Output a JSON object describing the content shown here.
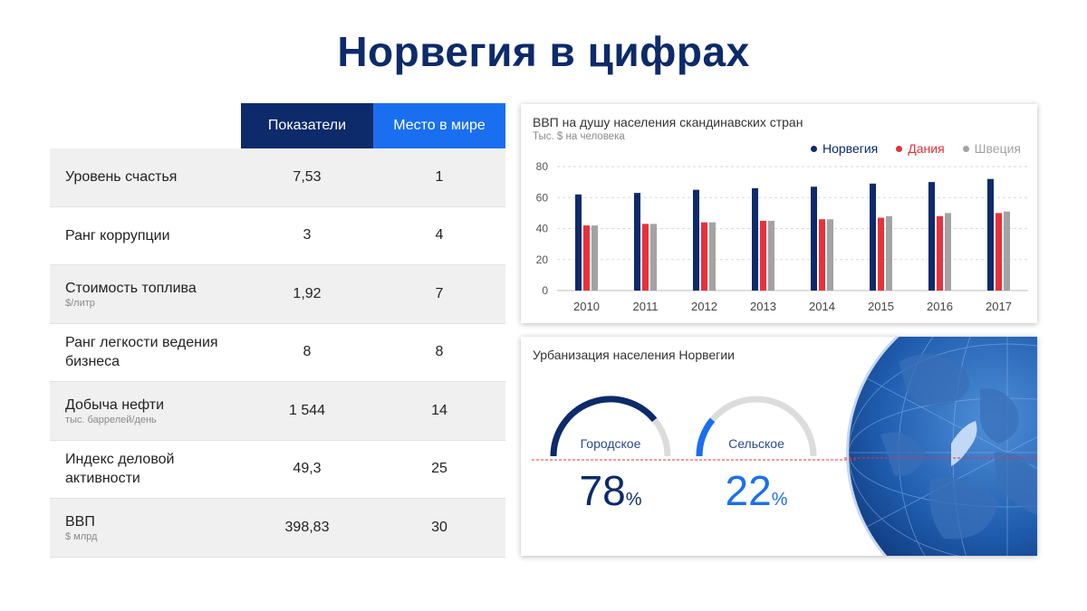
{
  "title": "Норвегия в цифрах",
  "table": {
    "col_headers": [
      "Показатели",
      "Место в мире"
    ],
    "rows": [
      {
        "name": "Уровень счастья",
        "unit": "",
        "value": "7,53",
        "rank": "1"
      },
      {
        "name": "Ранг коррупции",
        "unit": "",
        "value": "3",
        "rank": "4"
      },
      {
        "name": "Стоимость топлива",
        "unit": "$/литр",
        "value": "1,92",
        "rank": "7"
      },
      {
        "name": "Ранг легкости ведения бизнеса",
        "unit": "",
        "value": "8",
        "rank": "8"
      },
      {
        "name": "Добыча нефти",
        "unit": "тыс. баррелей/день",
        "value": "1 544",
        "rank": "14"
      },
      {
        "name": "Индекс деловой активности",
        "unit": "",
        "value": "49,3",
        "rank": "25"
      },
      {
        "name": "ВВП",
        "unit": "$ млрд",
        "value": "398,83",
        "rank": "30"
      }
    ]
  },
  "gdp_panel": {
    "title": "ВВП на душу населения скандинавских стран",
    "subtitle": "Тыс. $ на человека"
  },
  "urban_panel": {
    "title": "Урбанизация населения Норвегии",
    "gauges": [
      {
        "label": "Городское",
        "value": "78",
        "unit": "%",
        "fraction": 0.78
      },
      {
        "label": "Сельское",
        "value": "22",
        "unit": "%",
        "fraction": 0.22
      }
    ]
  },
  "colors": {
    "norway": "#0d2a6b",
    "denmark": "#e8313a",
    "sweden": "#a3a3a3",
    "accent_blue": "#1a6ff0",
    "dark_blue": "#0d2a6b"
  },
  "chart_data": {
    "type": "bar",
    "title": "ВВП на душу населения скандинавских стран",
    "subtitle": "Тыс. $ на человека",
    "categories": [
      "2010",
      "2011",
      "2012",
      "2013",
      "2014",
      "2015",
      "2016",
      "2017"
    ],
    "series": [
      {
        "name": "Норвегия",
        "color": "#0d2a6b",
        "values": [
          62,
          63,
          65,
          66,
          67,
          69,
          70,
          72
        ]
      },
      {
        "name": "Дания",
        "color": "#e8313a",
        "values": [
          42,
          43,
          44,
          45,
          46,
          47,
          48,
          50
        ]
      },
      {
        "name": "Швеция",
        "color": "#a3a3a3",
        "values": [
          42,
          43,
          44,
          45,
          46,
          48,
          50,
          51
        ]
      }
    ],
    "yticks": [
      0,
      20,
      40,
      60,
      80
    ],
    "ylim": [
      0,
      80
    ],
    "grid": true,
    "legend": "top-right"
  }
}
